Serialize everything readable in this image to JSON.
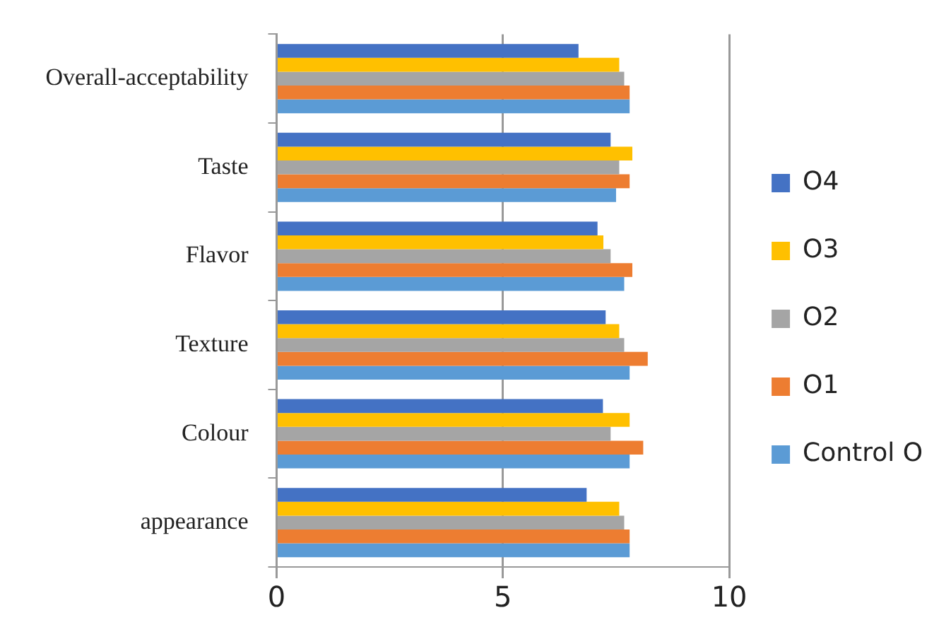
{
  "chart_data": {
    "type": "bar",
    "orientation": "horizontal",
    "categories": [
      "Overall-acceptability",
      "Taste",
      "Flavor",
      "Texture",
      "Colour",
      "appearance"
    ],
    "series": [
      {
        "name": "O4",
        "color": "#4472c4",
        "values": [
          6.67,
          7.38,
          7.09,
          7.27,
          7.21,
          6.85
        ]
      },
      {
        "name": "O3",
        "color": "#ffc000",
        "values": [
          7.57,
          7.86,
          7.22,
          7.57,
          7.8,
          7.57
        ]
      },
      {
        "name": "O2",
        "color": "#a5a5a5",
        "values": [
          7.68,
          7.57,
          7.38,
          7.68,
          7.38,
          7.68
        ]
      },
      {
        "name": "O1",
        "color": "#ed7d31",
        "values": [
          7.8,
          7.8,
          7.86,
          8.2,
          8.1,
          7.8
        ]
      },
      {
        "name": "Control O",
        "color": "#5b9bd5",
        "values": [
          7.8,
          7.5,
          7.68,
          7.8,
          7.8,
          7.8
        ]
      }
    ],
    "xlim": [
      0,
      10
    ],
    "xticks": [
      0,
      5,
      10
    ],
    "grid": "x",
    "legend": "right"
  }
}
